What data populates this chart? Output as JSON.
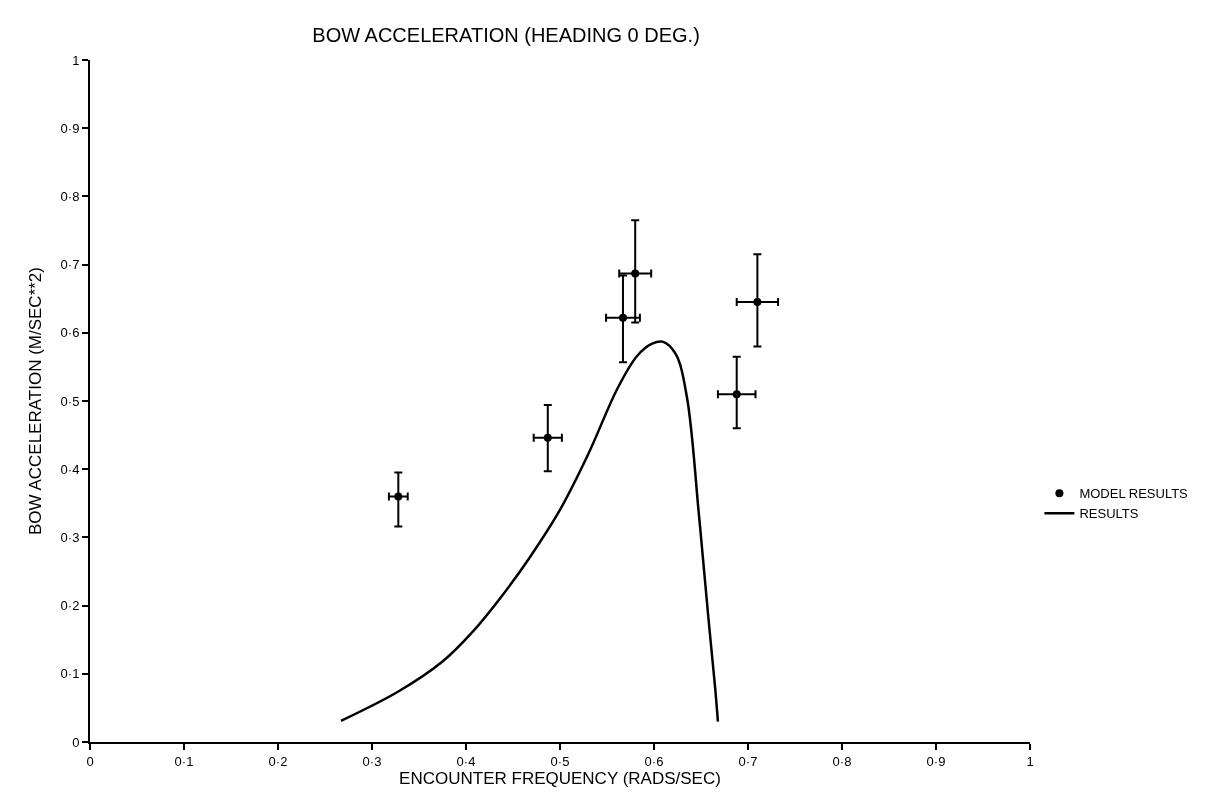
{
  "chart_data": {
    "type": "scatter",
    "title": "BOW ACCELERATION (HEADING 0 DEG.)",
    "xlabel": "ENCOUNTER FREQUENCY (RADS/SEC)",
    "ylabel": "BOW ACCELERATION (M/SEC**2)",
    "xlim": [
      0,
      1
    ],
    "ylim": [
      0,
      1
    ],
    "xticks": [
      {
        "value": 0,
        "label": "0"
      },
      {
        "value": 0.1,
        "label": "0·1"
      },
      {
        "value": 0.2,
        "label": "0·2"
      },
      {
        "value": 0.3,
        "label": "0·3"
      },
      {
        "value": 0.4,
        "label": "0·4"
      },
      {
        "value": 0.5,
        "label": "0·5"
      },
      {
        "value": 0.6,
        "label": "0·6"
      },
      {
        "value": 0.7,
        "label": "0·7"
      },
      {
        "value": 0.8,
        "label": "0·8"
      },
      {
        "value": 0.9,
        "label": "0·9"
      },
      {
        "value": 1,
        "label": "1"
      }
    ],
    "yticks": [
      {
        "value": 0,
        "label": "0"
      },
      {
        "value": 0.1,
        "label": "0·1"
      },
      {
        "value": 0.2,
        "label": "0·2"
      },
      {
        "value": 0.3,
        "label": "0·3"
      },
      {
        "value": 0.4,
        "label": "0·4"
      },
      {
        "value": 0.5,
        "label": "0·5"
      },
      {
        "value": 0.6,
        "label": "0·6"
      },
      {
        "value": 0.7,
        "label": "0·7"
      },
      {
        "value": 0.8,
        "label": "0·8"
      },
      {
        "value": 0.9,
        "label": "0·9"
      },
      {
        "value": 1,
        "label": "1"
      }
    ],
    "legend": "right",
    "series": [
      {
        "name": "MODEL RESULTS",
        "color": "#000000",
        "marker": "circle",
        "x": [
          0.328,
          0.487,
          0.567,
          0.58,
          0.688,
          0.71
        ],
        "values": [
          0.36,
          0.446,
          0.622,
          0.687,
          0.51,
          0.645
        ],
        "errors": [
          [
            0.316,
            0.395
          ],
          [
            0.397,
            0.494
          ],
          [
            0.557,
            0.684
          ],
          [
            0.615,
            0.765
          ],
          [
            0.46,
            0.565
          ],
          [
            0.58,
            0.715
          ]
        ],
        "xerrors": [
          0.01,
          0.015,
          0.018,
          0.017,
          0.02,
          0.022
        ]
      },
      {
        "name": "RESULTS",
        "type": "line",
        "color": "#000000",
        "marker": "none",
        "line_style": "solid",
        "x": [
          0.267,
          0.328,
          0.375,
          0.406,
          0.437,
          0.468,
          0.499,
          0.53,
          0.561,
          0.582,
          0.598,
          0.609,
          0.623,
          0.635,
          0.648,
          0.658,
          0.665,
          0.668
        ],
        "values": [
          0.031,
          0.074,
          0.118,
          0.16,
          0.212,
          0.271,
          0.338,
          0.422,
          0.518,
          0.566,
          0.584,
          0.587,
          0.569,
          0.506,
          0.33,
          0.18,
          0.08,
          0.03
        ]
      }
    ]
  }
}
